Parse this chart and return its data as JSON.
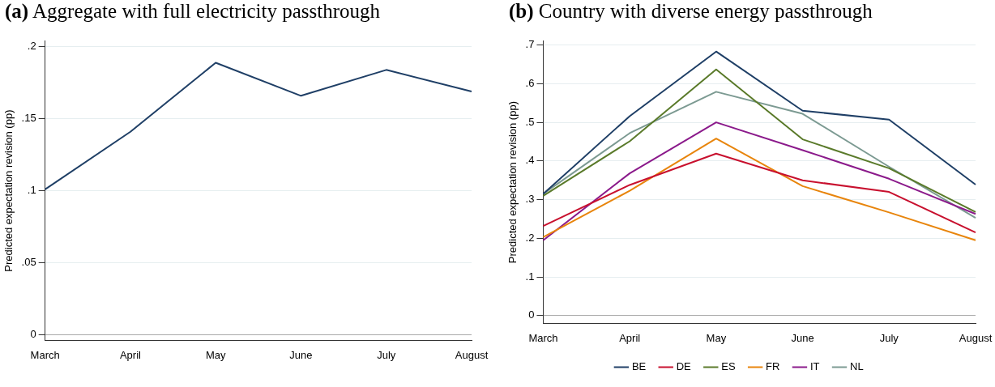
{
  "chart_data": [
    {
      "type": "line",
      "title": "(a) Aggregate with full electricity passthrough",
      "ylabel": "Predicted expectation revision (pp)",
      "categories": [
        "March",
        "April",
        "May",
        "June",
        "July",
        "August"
      ],
      "series": [
        {
          "color": "#1f3f66",
          "values": [
            0.101,
            0.141,
            0.189,
            0.166,
            0.184,
            0.169
          ]
        }
      ],
      "ylim": [
        -0.004,
        0.204
      ],
      "yticks": [
        0,
        {
          "value": 0.05,
          "label": ".05"
        },
        {
          "value": 0.1,
          "label": ".1"
        },
        {
          "value": 0.15,
          "label": ".15"
        },
        {
          "value": 0.2,
          "label": ".2"
        }
      ],
      "grid": "y",
      "legend": false,
      "marker": "none",
      "line_style": "solid"
    },
    {
      "type": "line",
      "title": "(b) Country with diverse energy passthrough",
      "ylabel": "Predicted expectation revision (pp)",
      "categories": [
        "March",
        "April",
        "May",
        "June",
        "July",
        "August"
      ],
      "series": [
        {
          "name": "BE",
          "color": "#1f3f66",
          "values": [
            0.315,
            0.516,
            0.683,
            0.53,
            0.507,
            0.339
          ]
        },
        {
          "name": "DE",
          "color": "#c8102e",
          "values": [
            0.232,
            0.338,
            0.419,
            0.35,
            0.32,
            0.215
          ]
        },
        {
          "name": "ES",
          "color": "#5a7a2a",
          "values": [
            0.31,
            0.451,
            0.637,
            0.456,
            0.381,
            0.268
          ]
        },
        {
          "name": "FR",
          "color": "#e8850c",
          "values": [
            0.203,
            0.323,
            0.458,
            0.335,
            0.267,
            0.195
          ]
        },
        {
          "name": "IT",
          "color": "#8b1a8b",
          "values": [
            0.195,
            0.368,
            0.5,
            0.428,
            0.354,
            0.263
          ]
        },
        {
          "name": "NL",
          "color": "#7c9a92",
          "values": [
            0.315,
            0.472,
            0.579,
            0.522,
            0.385,
            0.253
          ]
        }
      ],
      "ylim": [
        -0.02,
        0.71
      ],
      "yticks": [
        0,
        {
          "value": 0.1,
          "label": ".1"
        },
        {
          "value": 0.2,
          "label": ".2"
        },
        {
          "value": 0.3,
          "label": ".3"
        },
        {
          "value": 0.4,
          "label": ".4"
        },
        {
          "value": 0.5,
          "label": ".5"
        },
        {
          "value": 0.6,
          "label": ".6"
        },
        {
          "value": 0.7,
          "label": ".7"
        }
      ],
      "grid": "y",
      "legend": "bottom",
      "marker": "none",
      "line_style": "solid"
    }
  ]
}
